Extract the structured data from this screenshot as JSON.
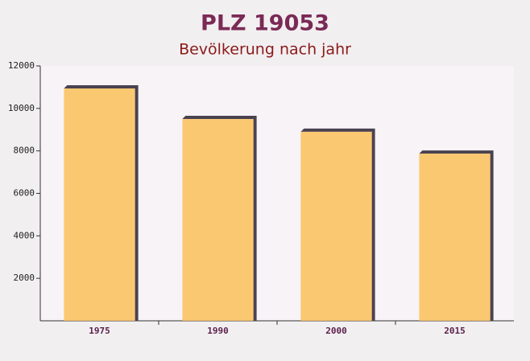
{
  "chart_data": {
    "type": "bar",
    "title": "PLZ 19053",
    "subtitle": "Bevölkerung nach jahr",
    "categories": [
      "1975",
      "1990",
      "2000",
      "2015"
    ],
    "values": [
      10940,
      9500,
      8900,
      7870
    ],
    "color": "#fbbf5a",
    "ylim": [
      0,
      12000
    ],
    "yticks": [
      2000,
      4000,
      6000,
      8000,
      10000,
      12000
    ],
    "grid": false
  }
}
